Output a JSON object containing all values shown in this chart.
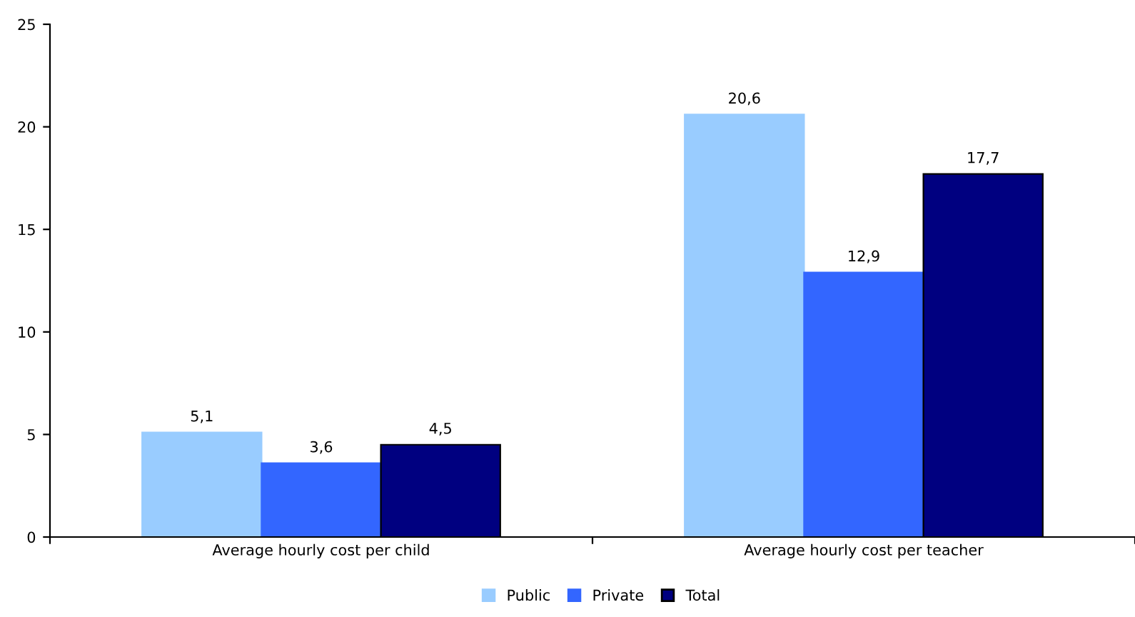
{
  "chart_data": {
    "type": "bar",
    "categories": [
      "Average hourly cost per child",
      "Average hourly cost per teacher"
    ],
    "series": [
      {
        "name": "Public",
        "color": "#99ccff",
        "values": [
          5.1,
          20.6
        ],
        "value_labels": [
          "5,1",
          "20,6"
        ]
      },
      {
        "name": "Private",
        "color": "#3366ff",
        "values": [
          3.6,
          12.9
        ],
        "value_labels": [
          "3,6",
          "12,9"
        ]
      },
      {
        "name": "Total",
        "color": "#000080",
        "values": [
          4.5,
          17.7
        ],
        "value_labels": [
          "4,5",
          "17,7"
        ]
      }
    ],
    "ylim": [
      0,
      25
    ],
    "yticks": [
      0,
      5,
      10,
      15,
      20,
      25
    ],
    "grid": false,
    "legend": "bottom"
  }
}
